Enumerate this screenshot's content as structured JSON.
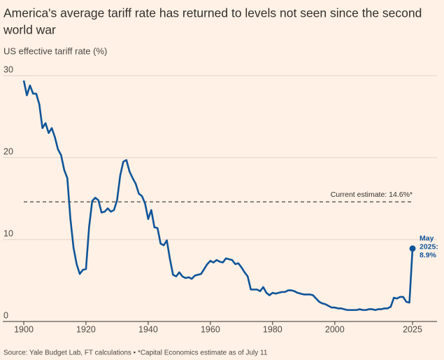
{
  "chart_data": {
    "type": "line",
    "title_lines": [
      "America's average tariff rate has returned to levels not seen since the second",
      "world war"
    ],
    "subtitle": "US effective tariff rate (%)",
    "source": "Source: Yale Budget Lab, FT calculations • *Capital Economics estimate as of July 11",
    "x": [
      1900,
      1901,
      1902,
      1903,
      1904,
      1905,
      1906,
      1907,
      1908,
      1909,
      1910,
      1911,
      1912,
      1913,
      1914,
      1915,
      1916,
      1917,
      1918,
      1919,
      1920,
      1921,
      1922,
      1923,
      1924,
      1925,
      1926,
      1927,
      1928,
      1929,
      1930,
      1931,
      1932,
      1933,
      1934,
      1935,
      1936,
      1937,
      1938,
      1939,
      1940,
      1941,
      1942,
      1943,
      1944,
      1945,
      1946,
      1947,
      1948,
      1949,
      1950,
      1951,
      1952,
      1953,
      1954,
      1955,
      1956,
      1957,
      1958,
      1959,
      1960,
      1961,
      1962,
      1963,
      1964,
      1965,
      1966,
      1967,
      1968,
      1969,
      1970,
      1971,
      1972,
      1973,
      1974,
      1975,
      1976,
      1977,
      1978,
      1979,
      1980,
      1981,
      1982,
      1983,
      1984,
      1985,
      1986,
      1987,
      1988,
      1989,
      1990,
      1991,
      1992,
      1993,
      1994,
      1995,
      1996,
      1997,
      1998,
      1999,
      2000,
      2001,
      2002,
      2003,
      2004,
      2005,
      2006,
      2007,
      2008,
      2009,
      2010,
      2011,
      2012,
      2013,
      2014,
      2015,
      2016,
      2017,
      2018,
      2019,
      2020,
      2021,
      2022,
      2023,
      2024,
      2025
    ],
    "series": [
      {
        "name": "US effective tariff rate",
        "color": "#0f5499",
        "values": [
          29.4,
          27.6,
          28.8,
          27.8,
          27.8,
          26.5,
          23.6,
          24.2,
          23.0,
          23.6,
          22.5,
          21.0,
          20.3,
          18.5,
          17.5,
          12.5,
          9.0,
          7.0,
          5.8,
          6.3,
          6.4,
          11.5,
          14.7,
          15.1,
          14.8,
          13.3,
          13.4,
          13.8,
          13.4,
          13.6,
          14.8,
          17.8,
          19.5,
          19.7,
          18.3,
          17.5,
          16.8,
          15.6,
          15.3,
          14.4,
          12.5,
          13.6,
          11.5,
          11.4,
          9.5,
          9.3,
          9.9,
          7.6,
          5.7,
          5.5,
          6.0,
          5.5,
          5.3,
          5.4,
          5.2,
          5.6,
          5.7,
          5.8,
          6.4,
          7.0,
          7.4,
          7.2,
          7.5,
          7.3,
          7.2,
          7.7,
          7.6,
          7.5,
          7.0,
          7.1,
          6.6,
          6.0,
          5.5,
          3.9,
          3.9,
          3.9,
          3.7,
          4.2,
          3.5,
          3.2,
          3.5,
          3.4,
          3.5,
          3.6,
          3.6,
          3.8,
          3.8,
          3.7,
          3.5,
          3.4,
          3.3,
          3.3,
          3.3,
          3.2,
          2.8,
          2.4,
          2.2,
          2.1,
          1.9,
          1.7,
          1.7,
          1.6,
          1.6,
          1.5,
          1.4,
          1.4,
          1.4,
          1.4,
          1.5,
          1.4,
          1.4,
          1.5,
          1.5,
          1.4,
          1.5,
          1.5,
          1.6,
          1.6,
          1.8,
          2.9,
          2.8,
          3.0,
          3.0,
          2.4,
          2.3,
          8.9
        ]
      }
    ],
    "last_point_label": [
      "May",
      "2025:",
      "8.9%"
    ],
    "reference": {
      "value": 14.6,
      "label": "Current estimate: 14.6%*"
    },
    "xlim": [
      1900,
      2025
    ],
    "xticks": [
      1900,
      1920,
      1940,
      1960,
      1980,
      2000,
      2025
    ],
    "ylim": [
      0,
      30
    ],
    "yticks": [
      0,
      10,
      20,
      30
    ],
    "grid": true
  }
}
